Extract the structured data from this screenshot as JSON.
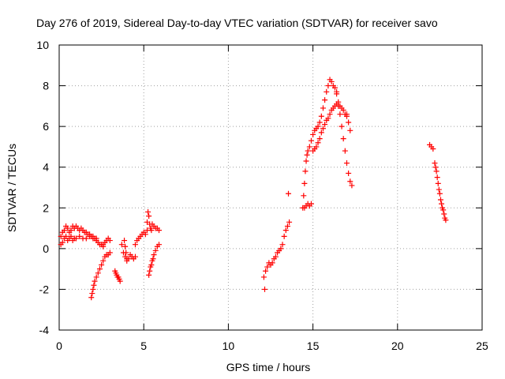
{
  "chart_data": {
    "type": "scatter",
    "title": "Day 276 of 2019, Sidereal Day-to-day VTEC variation (SDTVAR) for receiver savo",
    "xlabel": "GPS time / hours",
    "ylabel": "SDTVAR / TECUs",
    "xlim": [
      0,
      25
    ],
    "ylim": [
      -4,
      10
    ],
    "xticks": [
      0,
      5,
      10,
      15,
      20,
      25
    ],
    "yticks": [
      -4,
      -2,
      0,
      2,
      4,
      6,
      8,
      10
    ],
    "xtick_labels": [
      "0",
      "5",
      "10",
      "15",
      "20",
      "25"
    ],
    "ytick_labels": [
      "-4",
      "-2",
      "0",
      "2",
      "4",
      "6",
      "8",
      "10"
    ],
    "grid": true,
    "marker": "plus",
    "series": [
      {
        "name": "SDTVAR",
        "color": "#ff0000",
        "segments": [
          {
            "label": "early-band-upper",
            "x": [
              0.1,
              0.2,
              0.3,
              0.4,
              0.5,
              0.6,
              0.7,
              0.8,
              0.9,
              1.0,
              1.1,
              1.2,
              1.3,
              1.4,
              1.5,
              1.6,
              1.7,
              1.8,
              1.9,
              2.0,
              2.1,
              2.2,
              2.3,
              2.4,
              2.5,
              2.6
            ],
            "y": [
              0.6,
              0.8,
              0.9,
              1.1,
              1.0,
              0.8,
              0.9,
              1.1,
              1.0,
              1.1,
              1.0,
              0.9,
              1.0,
              0.9,
              0.8,
              0.8,
              0.7,
              0.7,
              0.6,
              0.6,
              0.5,
              0.4,
              0.3,
              0.2,
              0.2,
              0.1
            ]
          },
          {
            "label": "early-band-lower",
            "x": [
              0.1,
              0.2,
              0.3,
              0.4,
              0.5,
              0.6,
              0.7,
              0.8,
              0.9,
              1.0,
              1.2,
              1.4,
              1.6,
              1.8,
              2.0,
              2.2
            ],
            "y": [
              0.2,
              0.3,
              0.5,
              0.6,
              0.4,
              0.5,
              0.6,
              0.4,
              0.5,
              0.5,
              0.6,
              0.5,
              0.5,
              0.6,
              0.5,
              0.5
            ]
          },
          {
            "label": "dip-near-2h",
            "x": [
              1.9,
              1.95,
              2.0,
              2.05,
              2.1,
              2.2,
              2.3,
              2.4,
              2.5,
              2.6,
              2.7,
              2.8,
              2.9,
              3.0
            ],
            "y": [
              -2.4,
              -2.2,
              -2.0,
              -1.8,
              -1.6,
              -1.4,
              -1.2,
              -1.0,
              -0.8,
              -0.6,
              -0.4,
              -0.3,
              -0.3,
              -0.2
            ]
          },
          {
            "label": "rise-near-3h",
            "x": [
              2.6,
              2.7,
              2.8,
              2.9,
              3.0
            ],
            "y": [
              0.2,
              0.3,
              0.4,
              0.5,
              0.4
            ]
          },
          {
            "label": "dip-near-3.4h",
            "x": [
              3.3,
              3.35,
              3.4,
              3.45,
              3.5,
              3.55,
              3.6
            ],
            "y": [
              -1.1,
              -1.2,
              -1.3,
              -1.4,
              -1.4,
              -1.5,
              -1.6
            ]
          },
          {
            "label": "cluster-near-4h",
            "x": [
              3.7,
              3.8,
              3.9,
              4.0,
              4.1,
              4.2,
              4.3,
              4.4,
              4.5
            ],
            "y": [
              0.2,
              -0.2,
              -0.4,
              -0.6,
              -0.5,
              -0.3,
              -0.4,
              -0.5,
              -0.4
            ]
          },
          {
            "label": "spikes-near-4h",
            "x": [
              3.85,
              3.9,
              3.95,
              4.0
            ],
            "y": [
              0.4,
              0.1,
              -0.2,
              -0.5
            ]
          },
          {
            "label": "rise-near-5h",
            "x": [
              4.5,
              4.6,
              4.7,
              4.8,
              4.9,
              5.0,
              5.1,
              5.2
            ],
            "y": [
              0.2,
              0.4,
              0.5,
              0.6,
              0.7,
              0.8,
              0.7,
              0.9
            ]
          },
          {
            "label": "peak-near-5.3h",
            "x": [
              5.2,
              5.25,
              5.3,
              5.35,
              5.4,
              5.45,
              5.5,
              5.6,
              5.7,
              5.8,
              5.9
            ],
            "y": [
              1.3,
              1.8,
              1.6,
              1.2,
              1.0,
              0.9,
              1.2,
              1.1,
              1.0,
              1.0,
              0.9
            ]
          },
          {
            "label": "drop-near-5.5h",
            "x": [
              5.3,
              5.35,
              5.4,
              5.45,
              5.5,
              5.55,
              5.6,
              5.7,
              5.8,
              5.9
            ],
            "y": [
              -1.3,
              -1.1,
              -0.9,
              -0.8,
              -0.6,
              -0.5,
              -0.3,
              -0.1,
              0.1,
              0.2
            ]
          },
          {
            "label": "evening-rise",
            "x": [
              12.1,
              12.2,
              12.3,
              12.4,
              12.5,
              12.6,
              12.7,
              12.8,
              12.9,
              13.0,
              13.1,
              13.2,
              13.3,
              13.4,
              13.5,
              13.6
            ],
            "y": [
              -1.4,
              -1.1,
              -0.9,
              -0.7,
              -0.8,
              -0.7,
              -0.5,
              -0.4,
              -0.2,
              -0.1,
              0.0,
              0.2,
              0.6,
              0.9,
              1.1,
              1.3
            ]
          },
          {
            "label": "outlier-low",
            "x": [
              12.15
            ],
            "y": [
              -2.0
            ]
          },
          {
            "label": "outlier-high",
            "x": [
              13.55
            ],
            "y": [
              2.7
            ]
          },
          {
            "label": "steep-rise-14.5h",
            "x": [
              14.4,
              14.45,
              14.5,
              14.55,
              14.6,
              14.65,
              14.7,
              14.8,
              14.9,
              15.0,
              15.1,
              15.2,
              15.3,
              15.4,
              15.5,
              15.6,
              15.7,
              15.8,
              15.9,
              16.0,
              16.1,
              16.2,
              16.3,
              16.4
            ],
            "y": [
              2.0,
              2.6,
              3.2,
              3.8,
              4.3,
              4.6,
              4.8,
              5.0,
              5.3,
              5.6,
              5.8,
              5.9,
              6.0,
              6.2,
              6.5,
              6.9,
              7.3,
              7.7,
              8.0,
              8.3,
              8.2,
              8.0,
              7.9,
              7.7
            ]
          },
          {
            "label": "low-band-14.6h",
            "x": [
              14.5,
              14.6,
              14.7,
              14.8,
              14.9
            ],
            "y": [
              2.0,
              2.1,
              2.2,
              2.1,
              2.2
            ]
          },
          {
            "label": "secondary-curve",
            "x": [
              15.0,
              15.1,
              15.2,
              15.3,
              15.4,
              15.5,
              15.6,
              15.7,
              15.8,
              15.9,
              16.0,
              16.1,
              16.2,
              16.3,
              16.4,
              16.5,
              16.6,
              16.7,
              16.8,
              16.9,
              17.0
            ],
            "y": [
              4.8,
              4.9,
              5.0,
              5.2,
              5.4,
              5.7,
              5.9,
              6.1,
              6.3,
              6.4,
              6.6,
              6.8,
              6.9,
              7.0,
              7.1,
              7.0,
              7.0,
              6.9,
              6.8,
              6.6,
              6.5
            ]
          },
          {
            "label": "decay-17h",
            "x": [
              16.4,
              16.5,
              16.6,
              16.7,
              16.8,
              16.9,
              17.0,
              17.1,
              17.2,
              17.3
            ],
            "y": [
              7.6,
              7.2,
              6.6,
              6.0,
              5.4,
              4.8,
              4.2,
              3.7,
              3.3,
              3.1
            ]
          },
          {
            "label": "tail-17.2h",
            "x": [
              17.0,
              17.1,
              17.2
            ],
            "y": [
              6.6,
              6.2,
              5.8
            ]
          },
          {
            "label": "pair-22h",
            "x": [
              21.9,
              22.0,
              22.1
            ],
            "y": [
              5.1,
              5.0,
              4.9
            ]
          },
          {
            "label": "decline-22.5h",
            "x": [
              22.2,
              22.25,
              22.3,
              22.35,
              22.4,
              22.45,
              22.5,
              22.55,
              22.6,
              22.65,
              22.7,
              22.75,
              22.8,
              22.85
            ],
            "y": [
              4.2,
              4.0,
              3.8,
              3.5,
              3.2,
              2.9,
              2.7,
              2.4,
              2.2,
              2.0,
              1.9,
              1.7,
              1.5,
              1.4
            ]
          }
        ]
      }
    ]
  }
}
